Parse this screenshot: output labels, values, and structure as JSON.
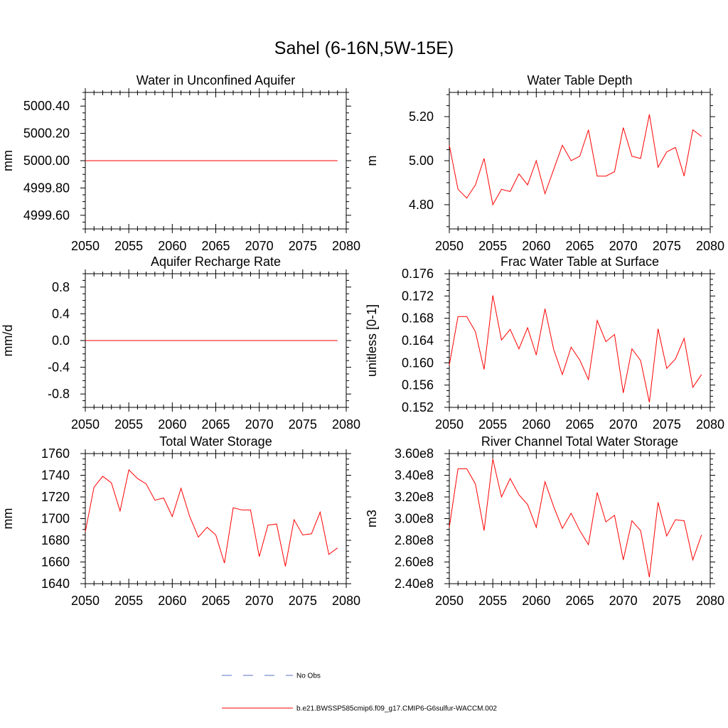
{
  "figure": {
    "title": "Sahel (6-16N,5W-15E)",
    "colors": {
      "model": "#ff0000",
      "obs": "#5b6fc7",
      "axis": "#000000"
    }
  },
  "legend": {
    "obs_label": "No Obs",
    "model_label": "b.e21.BWSSP585cmip6.f09_g17.CMIP6-G6sulfur-WACCM.002"
  },
  "chart_data": [
    {
      "type": "line",
      "title": "Water in Unconfined Aquifer",
      "xlabel": "",
      "ylabel": "mm",
      "xlim": [
        2050,
        2080
      ],
      "ylim": [
        4999.5,
        5000.5
      ],
      "xticks": [
        2050,
        2055,
        2060,
        2065,
        2070,
        2075,
        2080
      ],
      "yticks": [
        4999.6,
        4999.8,
        5000.0,
        5000.2,
        5000.4
      ],
      "ytick_labels": [
        "4999.60",
        "4999.80",
        "5000.00",
        "5000.20",
        "5000.40"
      ],
      "x": [
        2050,
        2051,
        2052,
        2053,
        2054,
        2055,
        2056,
        2057,
        2058,
        2059,
        2060,
        2061,
        2062,
        2063,
        2064,
        2065,
        2066,
        2067,
        2068,
        2069,
        2070,
        2071,
        2072,
        2073,
        2074,
        2075,
        2076,
        2077,
        2078,
        2079
      ],
      "series": [
        {
          "values": [
            5000,
            5000,
            5000,
            5000,
            5000,
            5000,
            5000,
            5000,
            5000,
            5000,
            5000,
            5000,
            5000,
            5000,
            5000,
            5000,
            5000,
            5000,
            5000,
            5000,
            5000,
            5000,
            5000,
            5000,
            5000,
            5000,
            5000,
            5000,
            5000,
            5000
          ]
        }
      ]
    },
    {
      "type": "line",
      "title": "Water Table Depth",
      "xlabel": "",
      "ylabel": "m",
      "xlim": [
        2050,
        2080
      ],
      "ylim": [
        4.69,
        5.31
      ],
      "xticks": [
        2050,
        2055,
        2060,
        2065,
        2070,
        2075,
        2080
      ],
      "yticks": [
        4.8,
        5.0,
        5.2
      ],
      "ytick_labels": [
        "4.80",
        "5.00",
        "5.20"
      ],
      "x": [
        2050,
        2051,
        2052,
        2053,
        2054,
        2055,
        2056,
        2057,
        2058,
        2059,
        2060,
        2061,
        2062,
        2063,
        2064,
        2065,
        2066,
        2067,
        2068,
        2069,
        2070,
        2071,
        2072,
        2073,
        2074,
        2075,
        2076,
        2077,
        2078,
        2079
      ],
      "series": [
        {
          "values": [
            5.07,
            4.87,
            4.83,
            4.89,
            5.01,
            4.8,
            4.87,
            4.86,
            4.94,
            4.89,
            5.0,
            4.85,
            4.96,
            5.07,
            5.0,
            5.02,
            5.14,
            4.93,
            4.93,
            4.95,
            5.15,
            5.02,
            5.01,
            5.21,
            4.97,
            5.04,
            5.06,
            4.93,
            5.14,
            5.11
          ]
        }
      ]
    },
    {
      "type": "line",
      "title": "Aquifer Recharge Rate",
      "xlabel": "",
      "ylabel": "mm/d",
      "xlim": [
        2050,
        2080
      ],
      "ylim": [
        -1.0,
        1.0
      ],
      "xticks": [
        2050,
        2055,
        2060,
        2065,
        2070,
        2075,
        2080
      ],
      "yticks": [
        -0.8,
        -0.4,
        0.0,
        0.4,
        0.8
      ],
      "ytick_labels": [
        "-0.8",
        "-0.4",
        "0.0",
        "0.4",
        "0.8"
      ],
      "x": [
        2050,
        2051,
        2052,
        2053,
        2054,
        2055,
        2056,
        2057,
        2058,
        2059,
        2060,
        2061,
        2062,
        2063,
        2064,
        2065,
        2066,
        2067,
        2068,
        2069,
        2070,
        2071,
        2072,
        2073,
        2074,
        2075,
        2076,
        2077,
        2078,
        2079
      ],
      "series": [
        {
          "values": [
            0,
            0,
            0,
            0,
            0,
            0,
            0,
            0,
            0,
            0,
            0,
            0,
            0,
            0,
            0,
            0,
            0,
            0,
            0,
            0,
            0,
            0,
            0,
            0,
            0,
            0,
            0,
            0,
            0,
            0
          ]
        }
      ]
    },
    {
      "type": "line",
      "title": "Frac Water Table at Surface",
      "xlabel": "",
      "ylabel": "unitless [0-1]",
      "xlim": [
        2050,
        2080
      ],
      "ylim": [
        0.152,
        0.176
      ],
      "xticks": [
        2050,
        2055,
        2060,
        2065,
        2070,
        2075,
        2080
      ],
      "yticks": [
        0.152,
        0.156,
        0.16,
        0.164,
        0.168,
        0.172,
        0.176
      ],
      "ytick_labels": [
        "0.152",
        "0.156",
        "0.160",
        "0.164",
        "0.168",
        "0.172",
        "0.176"
      ],
      "x": [
        2050,
        2051,
        2052,
        2053,
        2054,
        2055,
        2056,
        2057,
        2058,
        2059,
        2060,
        2061,
        2062,
        2063,
        2064,
        2065,
        2066,
        2067,
        2068,
        2069,
        2070,
        2071,
        2072,
        2073,
        2074,
        2075,
        2076,
        2077,
        2078,
        2079
      ],
      "series": [
        {
          "values": [
            0.1596,
            0.1683,
            0.1683,
            0.1656,
            0.1588,
            0.1721,
            0.1641,
            0.166,
            0.1625,
            0.1663,
            0.1614,
            0.1697,
            0.1624,
            0.1579,
            0.1628,
            0.1605,
            0.157,
            0.1676,
            0.1638,
            0.1651,
            0.1546,
            0.1625,
            0.1604,
            0.1529,
            0.1661,
            0.159,
            0.1607,
            0.1644,
            0.1556,
            0.1579
          ]
        }
      ]
    },
    {
      "type": "line",
      "title": "Total Water Storage",
      "xlabel": "",
      "ylabel": "mm",
      "xlim": [
        2050,
        2080
      ],
      "ylim": [
        1640,
        1760
      ],
      "xticks": [
        2050,
        2055,
        2060,
        2065,
        2070,
        2075,
        2080
      ],
      "yticks": [
        1640,
        1660,
        1680,
        1700,
        1720,
        1740,
        1760
      ],
      "ytick_labels": [
        "1640",
        "1660",
        "1680",
        "1700",
        "1720",
        "1740",
        "1760"
      ],
      "x": [
        2050,
        2051,
        2052,
        2053,
        2054,
        2055,
        2056,
        2057,
        2058,
        2059,
        2060,
        2061,
        2062,
        2063,
        2064,
        2065,
        2066,
        2067,
        2068,
        2069,
        2070,
        2071,
        2072,
        2073,
        2074,
        2075,
        2076,
        2077,
        2078,
        2079
      ],
      "series": [
        {
          "values": [
            1688,
            1729,
            1739,
            1733,
            1707,
            1745,
            1737,
            1732,
            1717,
            1719,
            1702,
            1728,
            1702,
            1683,
            1692,
            1685,
            1659,
            1710,
            1708,
            1708,
            1665,
            1694,
            1695,
            1656,
            1699,
            1685,
            1686,
            1706,
            1667,
            1673
          ]
        }
      ]
    },
    {
      "type": "line",
      "title": "River Channel Total Water Storage",
      "xlabel": "",
      "ylabel": "m3",
      "xlim": [
        2050,
        2080
      ],
      "ylim": [
        240000000,
        360000000
      ],
      "xticks": [
        2050,
        2055,
        2060,
        2065,
        2070,
        2075,
        2080
      ],
      "yticks": [
        240000000,
        260000000,
        280000000,
        300000000,
        320000000,
        340000000,
        360000000
      ],
      "ytick_labels": [
        "2.40e8",
        "2.60e8",
        "2.80e8",
        "3.00e8",
        "3.20e8",
        "3.40e8",
        "3.60e8"
      ],
      "x": [
        2050,
        2051,
        2052,
        2053,
        2054,
        2055,
        2056,
        2057,
        2058,
        2059,
        2060,
        2061,
        2062,
        2063,
        2064,
        2065,
        2066,
        2067,
        2068,
        2069,
        2070,
        2071,
        2072,
        2073,
        2074,
        2075,
        2076,
        2077,
        2078,
        2079
      ],
      "series": [
        {
          "values": [
            292000000,
            346000000,
            346000000,
            332000000,
            289000000,
            355000000,
            320000000,
            337000000,
            322000000,
            313000000,
            292000000,
            334000000,
            311000000,
            291000000,
            305000000,
            289000000,
            276000000,
            324000000,
            297000000,
            303000000,
            262000000,
            298000000,
            289000000,
            246000000,
            315000000,
            284000000,
            299000000,
            298000000,
            262000000,
            285000000
          ]
        }
      ]
    }
  ]
}
